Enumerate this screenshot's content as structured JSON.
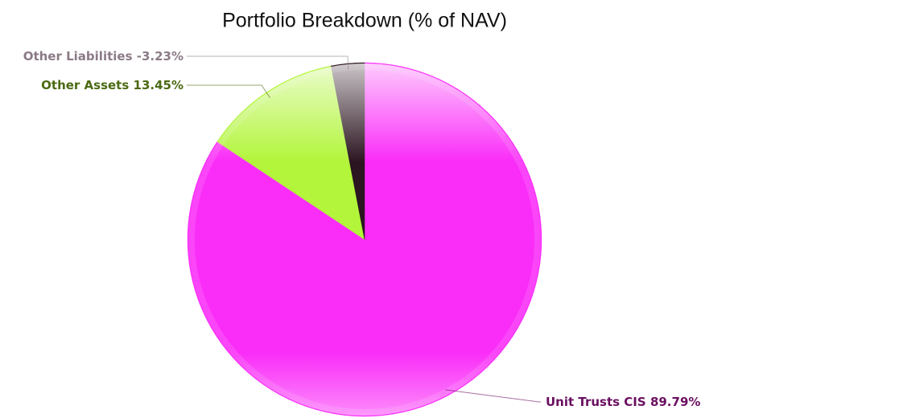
{
  "chart_data": {
    "type": "pie",
    "title": "Portfolio Breakdown (% of NAV)",
    "categories": [
      "Unit Trusts CIS",
      "Other Assets",
      "Other Liabilities"
    ],
    "values": [
      89.79,
      13.45,
      -3.23
    ],
    "value_labels": [
      "89.79%",
      "13.45%",
      "-3.23%"
    ],
    "colors": [
      "#fa2cf8",
      "#b2f53a",
      "#2b1520"
    ],
    "label_colors": [
      "#6a0f60",
      "#4b6a12",
      "#8b7b86"
    ]
  }
}
